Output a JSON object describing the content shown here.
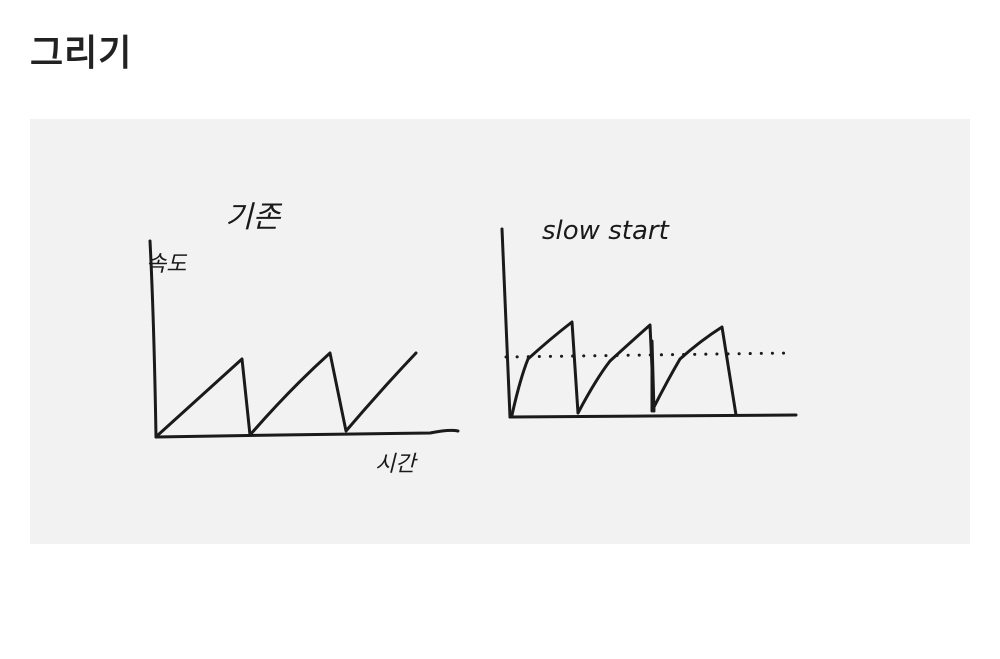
{
  "page": {
    "title": "그리기"
  },
  "sketch": {
    "left_caption": "기존",
    "left_y_label": "속도",
    "left_x_label": "시간",
    "right_caption": "slow start",
    "ink_color": "#1a1a1a",
    "background_color": "#f2f2f2"
  }
}
